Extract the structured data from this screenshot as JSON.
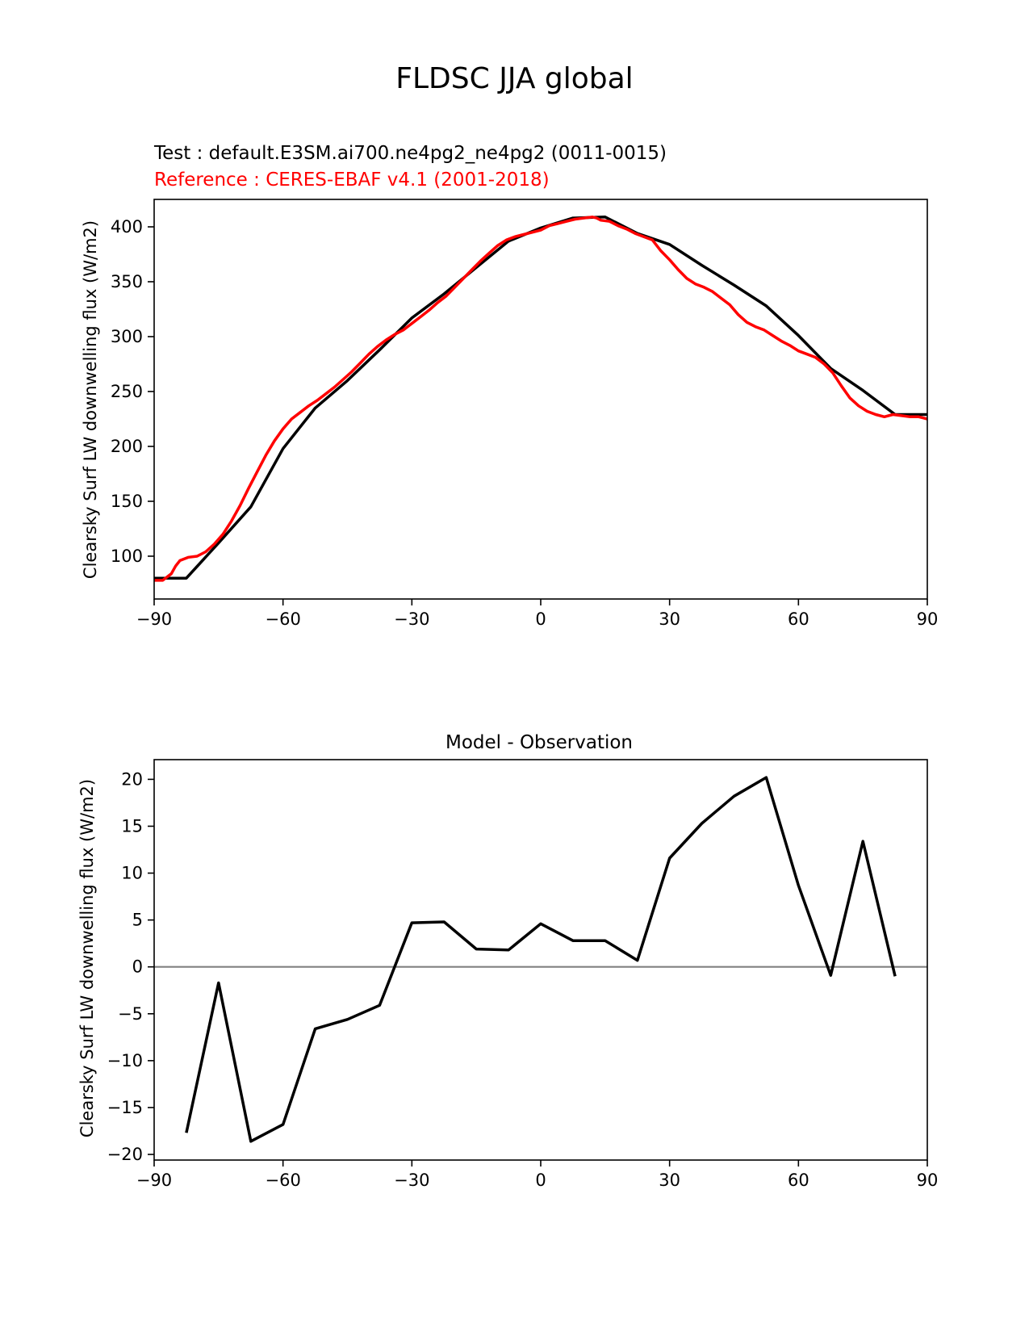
{
  "figure": {
    "title": "FLDSC JJA global"
  },
  "chart_data": [
    {
      "type": "line",
      "subtitle_test": "Test : default.E3SM.ai700.ne4pg2_ne4pg2 (0011-0015)",
      "subtitle_ref": "Reference : CERES-EBAF v4.1 (2001-2018)",
      "xlabel": "",
      "ylabel": "Clearsky Surf LW downwelling flux (W/m2)",
      "xlim": [
        -90,
        90
      ],
      "ylim": [
        61,
        425
      ],
      "xticks": [
        -90,
        -60,
        -30,
        0,
        30,
        60,
        90
      ],
      "xtick_labels": [
        "−90",
        "−60",
        "−30",
        "0",
        "30",
        "60",
        "90"
      ],
      "yticks": [
        100,
        150,
        200,
        250,
        300,
        350,
        400
      ],
      "ytick_labels": [
        "100",
        "150",
        "200",
        "250",
        "300",
        "350",
        "400"
      ],
      "grid": false,
      "series": [
        {
          "role": "test",
          "color": "#000000",
          "x": [
            -90,
            -82.5,
            -75,
            -67.5,
            -60,
            -52.5,
            -45,
            -37.5,
            -30,
            -22.5,
            -15,
            -7.5,
            0,
            7.5,
            15,
            22.5,
            30,
            37.5,
            45,
            52.5,
            60,
            67.5,
            75,
            82.5,
            90
          ],
          "y": [
            80,
            80,
            112,
            145,
            198,
            235,
            260,
            288,
            317,
            339,
            363,
            387,
            399,
            408,
            409,
            394,
            384,
            365,
            347,
            328,
            301,
            271,
            251,
            229,
            229
          ]
        },
        {
          "role": "reference",
          "color": "#ff0000",
          "x": [
            -90,
            -88,
            -86,
            -85,
            -84,
            -82,
            -80,
            -78,
            -76,
            -74,
            -72,
            -70,
            -68,
            -66,
            -64,
            -62,
            -60,
            -58,
            -56,
            -54,
            -52,
            -50,
            -48,
            -46,
            -44,
            -42,
            -40,
            -38,
            -36,
            -34,
            -32,
            -30,
            -28,
            -26,
            -24,
            -22,
            -20,
            -18,
            -16,
            -14,
            -12,
            -10,
            -8,
            -6,
            -4,
            -2,
            0,
            2,
            4,
            6,
            8,
            10,
            12,
            13,
            14,
            16,
            18,
            20,
            22,
            24,
            26,
            28,
            30,
            32,
            34,
            36,
            38,
            40,
            42,
            44,
            46,
            48,
            50,
            52,
            54,
            56,
            58,
            60,
            62,
            64,
            66,
            68,
            70,
            72,
            74,
            76,
            78,
            80,
            82,
            84,
            86,
            88,
            90
          ],
          "y": [
            78,
            78,
            84,
            91,
            96,
            99,
            100,
            104,
            111,
            120,
            132,
            146,
            162,
            177,
            192,
            205,
            216,
            225,
            231,
            237,
            242,
            248,
            254,
            261,
            268,
            276,
            284,
            291,
            297,
            302,
            306,
            312,
            318,
            324,
            331,
            337,
            345,
            353,
            361,
            369,
            376,
            383,
            388,
            391,
            393,
            395,
            397,
            401,
            403,
            405,
            407,
            408,
            409,
            408,
            406,
            405,
            401,
            398,
            394,
            391,
            388,
            378,
            370,
            361,
            353,
            348,
            345,
            341,
            335,
            329,
            320,
            313,
            309,
            306,
            301,
            296,
            292,
            287,
            284,
            281,
            275,
            267,
            255,
            244,
            237,
            232,
            229,
            227,
            229,
            228,
            227,
            227,
            225
          ]
        }
      ]
    },
    {
      "type": "line",
      "title": "Model - Observation",
      "xlabel": "",
      "ylabel": "Clearsky Surf LW downwelling flux (W/m2)",
      "xlim": [
        -90,
        90
      ],
      "ylim": [
        -20.6,
        22.1
      ],
      "xticks": [
        -90,
        -60,
        -30,
        0,
        30,
        60,
        90
      ],
      "xtick_labels": [
        "−90",
        "−60",
        "−30",
        "0",
        "30",
        "60",
        "90"
      ],
      "yticks": [
        -20,
        -15,
        -10,
        -5,
        0,
        5,
        10,
        15,
        20
      ],
      "ytick_labels": [
        "−20",
        "−15",
        "−10",
        "−5",
        "0",
        "5",
        "10",
        "15",
        "20"
      ],
      "grid": false,
      "zero_line": {
        "y": 0,
        "color": "#808080"
      },
      "series": [
        {
          "role": "difference",
          "color": "#000000",
          "x": [
            -82.5,
            -75,
            -67.5,
            -60,
            -52.5,
            -45,
            -37.5,
            -30,
            -22.5,
            -15,
            -7.5,
            0,
            7.5,
            15,
            22.5,
            30,
            37.5,
            45,
            52.5,
            60,
            67.5,
            75,
            82.5
          ],
          "y": [
            -17.7,
            -1.7,
            -18.6,
            -16.8,
            -6.6,
            -5.6,
            -4.1,
            4.7,
            4.8,
            1.9,
            1.8,
            4.6,
            2.8,
            2.8,
            0.7,
            11.6,
            15.3,
            18.2,
            20.2,
            8.7,
            -0.9,
            13.4,
            -1.0
          ]
        }
      ]
    }
  ]
}
